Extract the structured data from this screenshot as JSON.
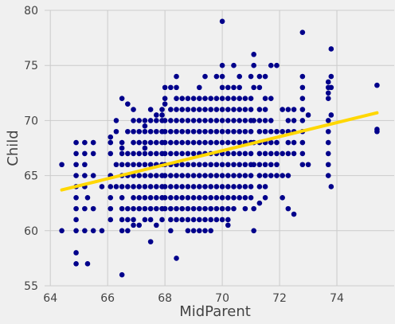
{
  "chart_data": {
    "type": "scatter",
    "xlabel": "MidParent",
    "ylabel": "Child",
    "xlim": [
      63.8,
      76.0
    ],
    "ylim": [
      55,
      80
    ],
    "xticks": [
      64,
      66,
      68,
      70,
      72,
      74
    ],
    "yticks": [
      55,
      60,
      65,
      70,
      75,
      80
    ],
    "grid": true,
    "colors": {
      "points": "#00008b",
      "fit_line": "#ffd700",
      "background": "#f0f0f0",
      "grid": "#cbcbcb"
    },
    "fit_line": {
      "x": [
        64.4,
        75.4
      ],
      "y": [
        63.7,
        70.7
      ]
    },
    "points": [
      [
        64.4,
        66
      ],
      [
        64.4,
        60
      ],
      [
        64.9,
        68
      ],
      [
        64.9,
        67
      ],
      [
        64.9,
        66
      ],
      [
        64.9,
        65
      ],
      [
        64.9,
        64
      ],
      [
        64.9,
        63
      ],
      [
        64.9,
        62
      ],
      [
        64.9,
        61
      ],
      [
        64.9,
        60
      ],
      [
        64.9,
        58
      ],
      [
        64.9,
        57
      ],
      [
        65.2,
        68
      ],
      [
        65.2,
        67
      ],
      [
        65.2,
        66
      ],
      [
        65.2,
        65
      ],
      [
        65.2,
        64
      ],
      [
        65.2,
        62
      ],
      [
        65.2,
        60
      ],
      [
        65.3,
        63
      ],
      [
        65.3,
        57
      ],
      [
        65.5,
        68
      ],
      [
        65.5,
        67
      ],
      [
        65.5,
        65
      ],
      [
        65.5,
        62
      ],
      [
        65.5,
        60
      ],
      [
        65.8,
        64
      ],
      [
        65.8,
        60
      ],
      [
        66.1,
        68.5
      ],
      [
        66.1,
        68
      ],
      [
        66.1,
        67
      ],
      [
        66.1,
        65
      ],
      [
        66.1,
        64
      ],
      [
        66.1,
        63
      ],
      [
        66.1,
        62
      ],
      [
        66.1,
        61
      ],
      [
        66.3,
        70
      ],
      [
        66.3,
        69
      ],
      [
        66.3,
        66
      ],
      [
        66.3,
        64
      ],
      [
        66.5,
        72
      ],
      [
        66.5,
        68
      ],
      [
        66.5,
        67.5
      ],
      [
        66.5,
        67
      ],
      [
        66.5,
        66
      ],
      [
        66.5,
        65
      ],
      [
        66.5,
        64
      ],
      [
        66.5,
        63
      ],
      [
        66.5,
        62
      ],
      [
        66.5,
        61
      ],
      [
        66.5,
        60
      ],
      [
        66.5,
        56
      ],
      [
        66.7,
        71.5
      ],
      [
        66.7,
        69
      ],
      [
        66.7,
        67
      ],
      [
        66.7,
        66
      ],
      [
        66.7,
        65
      ],
      [
        66.7,
        64
      ],
      [
        66.7,
        62
      ],
      [
        66.7,
        61
      ],
      [
        66.7,
        60
      ],
      [
        66.9,
        71
      ],
      [
        66.9,
        70
      ],
      [
        66.9,
        69
      ],
      [
        66.9,
        68
      ],
      [
        66.9,
        67
      ],
      [
        66.9,
        66
      ],
      [
        66.9,
        65
      ],
      [
        66.9,
        64
      ],
      [
        66.9,
        63
      ],
      [
        66.9,
        62
      ],
      [
        66.9,
        61
      ],
      [
        66.9,
        60.5
      ],
      [
        67.1,
        70
      ],
      [
        67.1,
        69
      ],
      [
        67.1,
        68
      ],
      [
        67.1,
        67
      ],
      [
        67.1,
        66
      ],
      [
        67.1,
        65
      ],
      [
        67.1,
        64
      ],
      [
        67.1,
        63
      ],
      [
        67.1,
        62
      ],
      [
        67.1,
        60.5
      ],
      [
        67.3,
        70
      ],
      [
        67.3,
        69.5
      ],
      [
        67.3,
        69
      ],
      [
        67.3,
        68
      ],
      [
        67.3,
        67.5
      ],
      [
        67.3,
        67
      ],
      [
        67.3,
        66
      ],
      [
        67.3,
        65
      ],
      [
        67.3,
        64
      ],
      [
        67.3,
        63
      ],
      [
        67.3,
        62
      ],
      [
        67.3,
        61
      ],
      [
        67.5,
        71
      ],
      [
        67.5,
        70
      ],
      [
        67.5,
        69
      ],
      [
        67.5,
        68
      ],
      [
        67.5,
        67
      ],
      [
        67.5,
        66
      ],
      [
        67.5,
        65
      ],
      [
        67.5,
        64
      ],
      [
        67.5,
        63
      ],
      [
        67.5,
        62
      ],
      [
        67.5,
        61
      ],
      [
        67.5,
        59
      ],
      [
        67.7,
        70.5
      ],
      [
        67.7,
        70
      ],
      [
        67.7,
        69
      ],
      [
        67.7,
        68
      ],
      [
        67.7,
        67
      ],
      [
        67.7,
        66
      ],
      [
        67.7,
        65
      ],
      [
        67.7,
        64
      ],
      [
        67.7,
        63
      ],
      [
        67.7,
        62
      ],
      [
        67.7,
        60.5
      ],
      [
        67.9,
        71
      ],
      [
        67.9,
        70.5
      ],
      [
        67.9,
        70
      ],
      [
        67.9,
        69
      ],
      [
        67.9,
        68
      ],
      [
        67.9,
        67
      ],
      [
        67.9,
        66
      ],
      [
        67.9,
        65
      ],
      [
        67.9,
        64
      ],
      [
        67.9,
        63
      ],
      [
        67.9,
        62
      ],
      [
        67.9,
        61
      ],
      [
        68.0,
        73
      ],
      [
        68.0,
        72
      ],
      [
        68.0,
        71.5
      ],
      [
        68.0,
        70
      ],
      [
        68.0,
        69
      ],
      [
        68.0,
        68
      ],
      [
        68.0,
        67
      ],
      [
        68.0,
        66
      ],
      [
        68.0,
        65
      ],
      [
        68.0,
        64
      ],
      [
        68.0,
        63
      ],
      [
        68.0,
        62
      ],
      [
        68.2,
        73
      ],
      [
        68.2,
        71
      ],
      [
        68.2,
        70
      ],
      [
        68.2,
        69
      ],
      [
        68.2,
        68
      ],
      [
        68.2,
        67
      ],
      [
        68.2,
        66
      ],
      [
        68.2,
        65
      ],
      [
        68.2,
        64
      ],
      [
        68.2,
        63
      ],
      [
        68.2,
        62
      ],
      [
        68.2,
        61
      ],
      [
        68.2,
        60
      ],
      [
        68.4,
        74
      ],
      [
        68.4,
        73
      ],
      [
        68.4,
        72
      ],
      [
        68.4,
        71
      ],
      [
        68.4,
        70
      ],
      [
        68.4,
        69
      ],
      [
        68.4,
        68
      ],
      [
        68.4,
        67
      ],
      [
        68.4,
        66
      ],
      [
        68.4,
        65
      ],
      [
        68.4,
        64
      ],
      [
        68.4,
        63
      ],
      [
        68.4,
        62
      ],
      [
        68.4,
        61
      ],
      [
        68.4,
        57.5
      ],
      [
        68.6,
        72
      ],
      [
        68.6,
        71
      ],
      [
        68.6,
        70
      ],
      [
        68.6,
        69
      ],
      [
        68.6,
        68
      ],
      [
        68.6,
        67
      ],
      [
        68.6,
        66
      ],
      [
        68.6,
        65
      ],
      [
        68.6,
        64
      ],
      [
        68.6,
        63
      ],
      [
        68.6,
        62
      ],
      [
        68.6,
        61
      ],
      [
        68.8,
        72
      ],
      [
        68.8,
        71
      ],
      [
        68.8,
        70
      ],
      [
        68.8,
        69
      ],
      [
        68.8,
        68
      ],
      [
        68.8,
        67
      ],
      [
        68.8,
        66
      ],
      [
        68.8,
        65
      ],
      [
        68.8,
        64
      ],
      [
        68.8,
        63
      ],
      [
        68.8,
        62
      ],
      [
        68.8,
        61
      ],
      [
        68.8,
        60
      ],
      [
        69.0,
        72
      ],
      [
        69.0,
        71
      ],
      [
        69.0,
        70
      ],
      [
        69.0,
        69
      ],
      [
        69.0,
        68
      ],
      [
        69.0,
        67
      ],
      [
        69.0,
        66
      ],
      [
        69.0,
        65
      ],
      [
        69.0,
        64
      ],
      [
        69.0,
        63
      ],
      [
        69.0,
        62
      ],
      [
        69.0,
        61
      ],
      [
        69.0,
        60
      ],
      [
        69.2,
        73
      ],
      [
        69.2,
        72
      ],
      [
        69.2,
        71
      ],
      [
        69.2,
        70
      ],
      [
        69.2,
        69
      ],
      [
        69.2,
        68
      ],
      [
        69.2,
        67
      ],
      [
        69.2,
        66
      ],
      [
        69.2,
        65
      ],
      [
        69.2,
        64
      ],
      [
        69.2,
        63
      ],
      [
        69.2,
        62
      ],
      [
        69.2,
        61
      ],
      [
        69.2,
        60
      ],
      [
        69.4,
        74
      ],
      [
        69.4,
        72
      ],
      [
        69.4,
        71
      ],
      [
        69.4,
        70
      ],
      [
        69.4,
        69
      ],
      [
        69.4,
        68
      ],
      [
        69.4,
        67
      ],
      [
        69.4,
        66
      ],
      [
        69.4,
        65
      ],
      [
        69.4,
        64
      ],
      [
        69.4,
        63
      ],
      [
        69.4,
        62
      ],
      [
        69.4,
        61
      ],
      [
        69.4,
        60
      ],
      [
        69.6,
        72
      ],
      [
        69.6,
        71
      ],
      [
        69.6,
        70
      ],
      [
        69.6,
        69
      ],
      [
        69.6,
        68
      ],
      [
        69.6,
        67
      ],
      [
        69.6,
        66
      ],
      [
        69.6,
        65
      ],
      [
        69.6,
        64
      ],
      [
        69.6,
        63
      ],
      [
        69.6,
        62
      ],
      [
        69.6,
        61
      ],
      [
        69.6,
        60
      ],
      [
        69.8,
        74
      ],
      [
        69.8,
        72
      ],
      [
        69.8,
        71
      ],
      [
        69.8,
        70
      ],
      [
        69.8,
        69
      ],
      [
        69.8,
        68
      ],
      [
        69.8,
        67
      ],
      [
        69.8,
        66
      ],
      [
        69.8,
        65
      ],
      [
        69.8,
        64
      ],
      [
        69.8,
        63
      ],
      [
        69.8,
        62
      ],
      [
        69.8,
        61
      ],
      [
        70.0,
        79
      ],
      [
        70.0,
        75
      ],
      [
        70.0,
        74
      ],
      [
        70.0,
        73
      ],
      [
        70.0,
        72
      ],
      [
        70.0,
        71
      ],
      [
        70.0,
        70
      ],
      [
        70.0,
        69
      ],
      [
        70.0,
        68
      ],
      [
        70.0,
        67
      ],
      [
        70.0,
        66
      ],
      [
        70.0,
        65
      ],
      [
        70.0,
        64
      ],
      [
        70.0,
        63
      ],
      [
        70.0,
        62
      ],
      [
        70.0,
        61
      ],
      [
        70.2,
        73
      ],
      [
        70.2,
        72
      ],
      [
        70.2,
        71
      ],
      [
        70.2,
        70
      ],
      [
        70.2,
        69
      ],
      [
        70.2,
        68
      ],
      [
        70.2,
        67
      ],
      [
        70.2,
        66
      ],
      [
        70.2,
        65
      ],
      [
        70.2,
        64
      ],
      [
        70.2,
        63
      ],
      [
        70.2,
        62
      ],
      [
        70.2,
        61
      ],
      [
        70.2,
        60.5
      ],
      [
        70.4,
        75
      ],
      [
        70.4,
        73
      ],
      [
        70.4,
        72
      ],
      [
        70.4,
        71
      ],
      [
        70.4,
        70
      ],
      [
        70.4,
        69
      ],
      [
        70.4,
        68
      ],
      [
        70.4,
        67
      ],
      [
        70.4,
        66
      ],
      [
        70.4,
        65
      ],
      [
        70.4,
        64
      ],
      [
        70.4,
        63
      ],
      [
        70.4,
        62
      ],
      [
        70.6,
        74
      ],
      [
        70.6,
        73
      ],
      [
        70.6,
        72
      ],
      [
        70.6,
        71
      ],
      [
        70.6,
        70
      ],
      [
        70.6,
        69
      ],
      [
        70.6,
        68
      ],
      [
        70.6,
        67
      ],
      [
        70.6,
        66
      ],
      [
        70.6,
        65
      ],
      [
        70.6,
        64
      ],
      [
        70.6,
        63
      ],
      [
        70.8,
        72
      ],
      [
        70.8,
        71
      ],
      [
        70.8,
        70
      ],
      [
        70.8,
        69
      ],
      [
        70.8,
        68
      ],
      [
        70.8,
        67
      ],
      [
        70.8,
        66
      ],
      [
        70.8,
        65
      ],
      [
        70.8,
        64
      ],
      [
        70.8,
        63
      ],
      [
        70.8,
        62
      ],
      [
        71.0,
        74
      ],
      [
        71.0,
        72
      ],
      [
        71.0,
        71
      ],
      [
        71.0,
        70
      ],
      [
        71.0,
        69
      ],
      [
        71.0,
        68
      ],
      [
        71.0,
        67
      ],
      [
        71.0,
        66
      ],
      [
        71.0,
        65
      ],
      [
        71.0,
        64
      ],
      [
        71.0,
        63
      ],
      [
        71.1,
        76
      ],
      [
        71.1,
        75
      ],
      [
        71.1,
        73
      ],
      [
        71.1,
        70
      ],
      [
        71.1,
        68
      ],
      [
        71.1,
        66
      ],
      [
        71.1,
        62
      ],
      [
        71.1,
        60
      ],
      [
        71.3,
        74
      ],
      [
        71.3,
        73
      ],
      [
        71.3,
        71
      ],
      [
        71.3,
        70
      ],
      [
        71.3,
        69
      ],
      [
        71.3,
        68
      ],
      [
        71.3,
        67
      ],
      [
        71.3,
        66
      ],
      [
        71.3,
        65
      ],
      [
        71.3,
        64
      ],
      [
        71.3,
        62.5
      ],
      [
        71.5,
        74
      ],
      [
        71.5,
        72
      ],
      [
        71.5,
        71
      ],
      [
        71.5,
        70
      ],
      [
        71.5,
        69
      ],
      [
        71.5,
        68
      ],
      [
        71.5,
        67
      ],
      [
        71.5,
        66
      ],
      [
        71.5,
        65
      ],
      [
        71.5,
        64
      ],
      [
        71.5,
        63
      ],
      [
        71.7,
        75
      ],
      [
        71.7,
        72
      ],
      [
        71.7,
        70
      ],
      [
        71.7,
        69
      ],
      [
        71.7,
        68
      ],
      [
        71.7,
        67
      ],
      [
        71.7,
        66
      ],
      [
        71.7,
        65
      ],
      [
        71.9,
        75
      ],
      [
        71.9,
        69
      ],
      [
        71.9,
        68
      ],
      [
        71.9,
        67
      ],
      [
        71.9,
        66
      ],
      [
        71.9,
        65
      ],
      [
        72.1,
        71
      ],
      [
        72.1,
        69
      ],
      [
        72.1,
        67
      ],
      [
        72.1,
        65
      ],
      [
        72.1,
        63
      ],
      [
        72.3,
        71
      ],
      [
        72.3,
        70
      ],
      [
        72.3,
        69
      ],
      [
        72.3,
        68
      ],
      [
        72.3,
        67
      ],
      [
        72.3,
        65
      ],
      [
        72.3,
        62
      ],
      [
        72.5,
        71
      ],
      [
        72.5,
        70
      ],
      [
        72.5,
        69
      ],
      [
        72.5,
        68
      ],
      [
        72.5,
        67
      ],
      [
        72.5,
        61.5
      ],
      [
        72.8,
        78
      ],
      [
        72.8,
        74
      ],
      [
        72.8,
        73
      ],
      [
        72.8,
        72
      ],
      [
        72.8,
        71
      ],
      [
        72.8,
        70
      ],
      [
        72.8,
        69
      ],
      [
        72.8,
        68
      ],
      [
        72.8,
        67
      ],
      [
        72.8,
        66
      ],
      [
        73.0,
        70.5
      ],
      [
        73.0,
        66
      ],
      [
        73.7,
        73.5
      ],
      [
        73.7,
        73
      ],
      [
        73.7,
        72.5
      ],
      [
        73.7,
        72
      ],
      [
        73.7,
        70
      ],
      [
        73.7,
        69
      ],
      [
        73.7,
        68
      ],
      [
        73.7,
        67
      ],
      [
        73.7,
        66
      ],
      [
        73.7,
        65
      ],
      [
        73.8,
        76.5
      ],
      [
        73.8,
        74
      ],
      [
        73.8,
        73
      ],
      [
        73.8,
        70.5
      ],
      [
        73.8,
        64
      ],
      [
        75.4,
        73.2
      ],
      [
        75.4,
        69.2
      ],
      [
        75.4,
        69
      ]
    ]
  }
}
